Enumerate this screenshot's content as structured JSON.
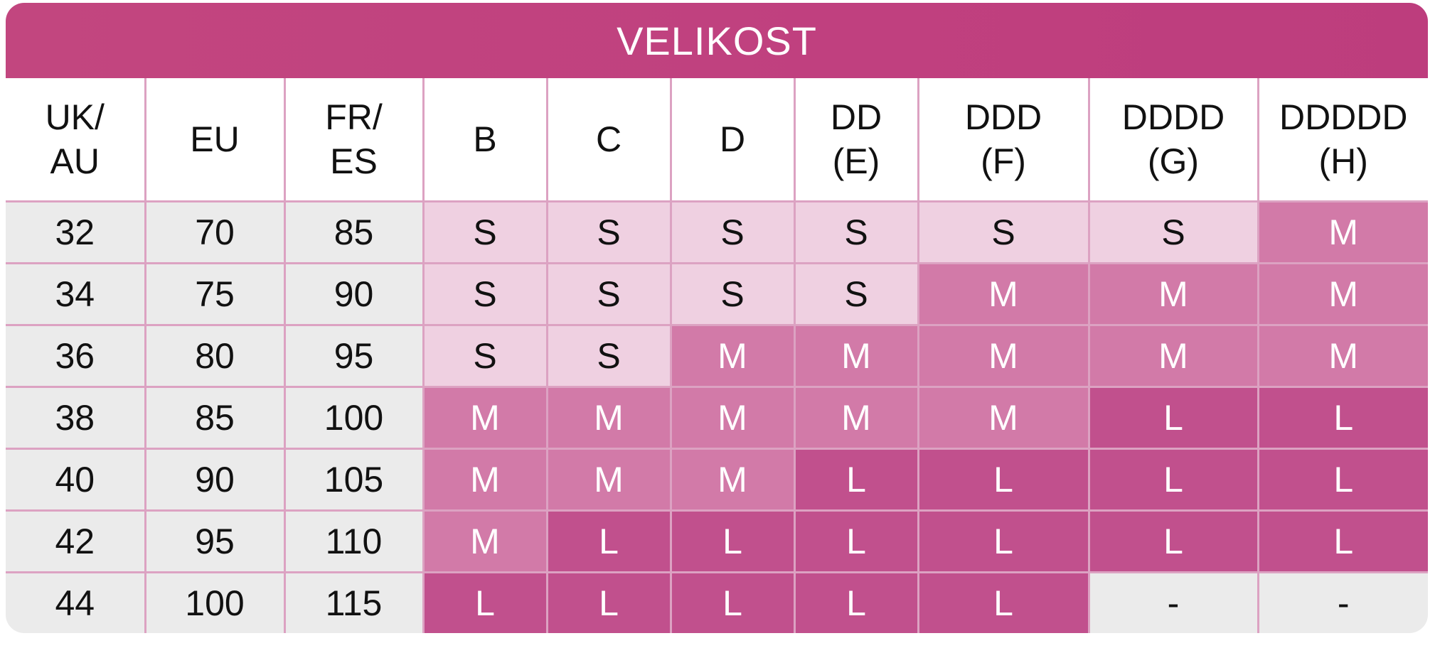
{
  "title": "VELIKOST",
  "colors": {
    "title_bg": "#c0407f",
    "grid_lines": "#dca2c2",
    "band_bg": "#ebebeb",
    "size_S_bg": "#efd0e1",
    "size_M_bg": "#d27aa8",
    "size_L_bg": "#c1508d"
  },
  "headers": [
    {
      "line1": "UK/",
      "line2": "AU"
    },
    {
      "line1": "EU",
      "line2": ""
    },
    {
      "line1": "FR/",
      "line2": "ES"
    },
    {
      "line1": "B",
      "line2": ""
    },
    {
      "line1": "C",
      "line2": ""
    },
    {
      "line1": "D",
      "line2": ""
    },
    {
      "line1": "DD",
      "line2": "(E)"
    },
    {
      "line1": "DDD",
      "line2": "(F)"
    },
    {
      "line1": "DDDD",
      "line2": "(G)"
    },
    {
      "line1": "DDDDD",
      "line2": "(H)"
    }
  ],
  "rows": [
    {
      "uk_au": "32",
      "eu": "70",
      "fr_es": "85",
      "sizes": [
        "S",
        "S",
        "S",
        "S",
        "S",
        "S",
        "M"
      ]
    },
    {
      "uk_au": "34",
      "eu": "75",
      "fr_es": "90",
      "sizes": [
        "S",
        "S",
        "S",
        "S",
        "M",
        "M",
        "M"
      ]
    },
    {
      "uk_au": "36",
      "eu": "80",
      "fr_es": "95",
      "sizes": [
        "S",
        "S",
        "M",
        "M",
        "M",
        "M",
        "M"
      ]
    },
    {
      "uk_au": "38",
      "eu": "85",
      "fr_es": "100",
      "sizes": [
        "M",
        "M",
        "M",
        "M",
        "M",
        "L",
        "L"
      ]
    },
    {
      "uk_au": "40",
      "eu": "90",
      "fr_es": "105",
      "sizes": [
        "M",
        "M",
        "M",
        "L",
        "L",
        "L",
        "L"
      ]
    },
    {
      "uk_au": "42",
      "eu": "95",
      "fr_es": "110",
      "sizes": [
        "M",
        "L",
        "L",
        "L",
        "L",
        "L",
        "L"
      ]
    },
    {
      "uk_au": "44",
      "eu": "100",
      "fr_es": "115",
      "sizes": [
        "L",
        "L",
        "L",
        "L",
        "L",
        "-",
        "-"
      ]
    }
  ]
}
